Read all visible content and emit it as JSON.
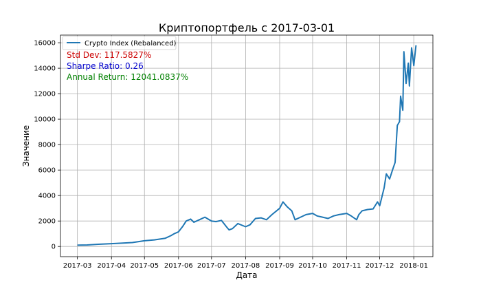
{
  "chart_data": {
    "type": "line",
    "title": "Криптопортфель с 2017-03-01",
    "xlabel": "Дата",
    "ylabel": "Значение",
    "x_ticks": [
      "2017-03",
      "2017-04",
      "2017-05",
      "2017-06",
      "2017-07",
      "2017-08",
      "2017-09",
      "2017-10",
      "2017-11",
      "2017-12",
      "2018-01"
    ],
    "ylim": [
      -800,
      16600
    ],
    "y_ticks": [
      0,
      2000,
      4000,
      6000,
      8000,
      10000,
      12000,
      14000,
      16000
    ],
    "grid": true,
    "legend_position": "top-left",
    "series": [
      {
        "name": "Crypto Index (Rebalanced)",
        "color": "#1f77b4",
        "x": [
          "2017-03-01",
          "2017-03-10",
          "2017-03-20",
          "2017-04-01",
          "2017-04-10",
          "2017-04-20",
          "2017-05-01",
          "2017-05-10",
          "2017-05-20",
          "2017-05-25",
          "2017-05-28",
          "2017-06-01",
          "2017-06-05",
          "2017-06-08",
          "2017-06-12",
          "2017-06-15",
          "2017-06-20",
          "2017-06-25",
          "2017-07-01",
          "2017-07-05",
          "2017-07-10",
          "2017-07-15",
          "2017-07-17",
          "2017-07-20",
          "2017-07-25",
          "2017-08-01",
          "2017-08-05",
          "2017-08-10",
          "2017-08-15",
          "2017-08-20",
          "2017-08-25",
          "2017-09-01",
          "2017-09-04",
          "2017-09-08",
          "2017-09-12",
          "2017-09-15",
          "2017-09-20",
          "2017-09-25",
          "2017-10-01",
          "2017-10-05",
          "2017-10-10",
          "2017-10-15",
          "2017-10-20",
          "2017-10-25",
          "2017-11-01",
          "2017-11-05",
          "2017-11-10",
          "2017-11-12",
          "2017-11-15",
          "2017-11-20",
          "2017-11-25",
          "2017-11-29",
          "2017-12-01",
          "2017-12-05",
          "2017-12-07",
          "2017-12-10",
          "2017-12-13",
          "2017-12-15",
          "2017-12-17",
          "2017-12-19",
          "2017-12-20",
          "2017-12-22",
          "2017-12-23",
          "2017-12-25",
          "2017-12-27",
          "2017-12-28",
          "2017-12-30",
          "2018-01-01",
          "2018-01-03"
        ],
        "values": [
          100,
          120,
          170,
          220,
          260,
          310,
          450,
          520,
          650,
          850,
          1000,
          1150,
          1600,
          2000,
          2150,
          1900,
          2100,
          2300,
          2000,
          1950,
          2050,
          1500,
          1300,
          1400,
          1800,
          1550,
          1700,
          2200,
          2250,
          2100,
          2500,
          3000,
          3500,
          3100,
          2800,
          2100,
          2300,
          2500,
          2600,
          2400,
          2300,
          2200,
          2400,
          2500,
          2600,
          2400,
          2100,
          2500,
          2800,
          2900,
          2950,
          3500,
          3200,
          4600,
          5700,
          5300,
          6100,
          6600,
          9500,
          9800,
          11800,
          10700,
          15300,
          12800,
          14400,
          12600,
          15600,
          14200,
          15800
        ]
      }
    ],
    "annotations": [
      {
        "text": "Std Dev: 117.5827%",
        "color": "#cc0000"
      },
      {
        "text": "Sharpe Ratio: 0.26",
        "color": "#0000cc"
      },
      {
        "text": "Annual Return: 12041.0837%",
        "color": "#008000"
      }
    ]
  }
}
